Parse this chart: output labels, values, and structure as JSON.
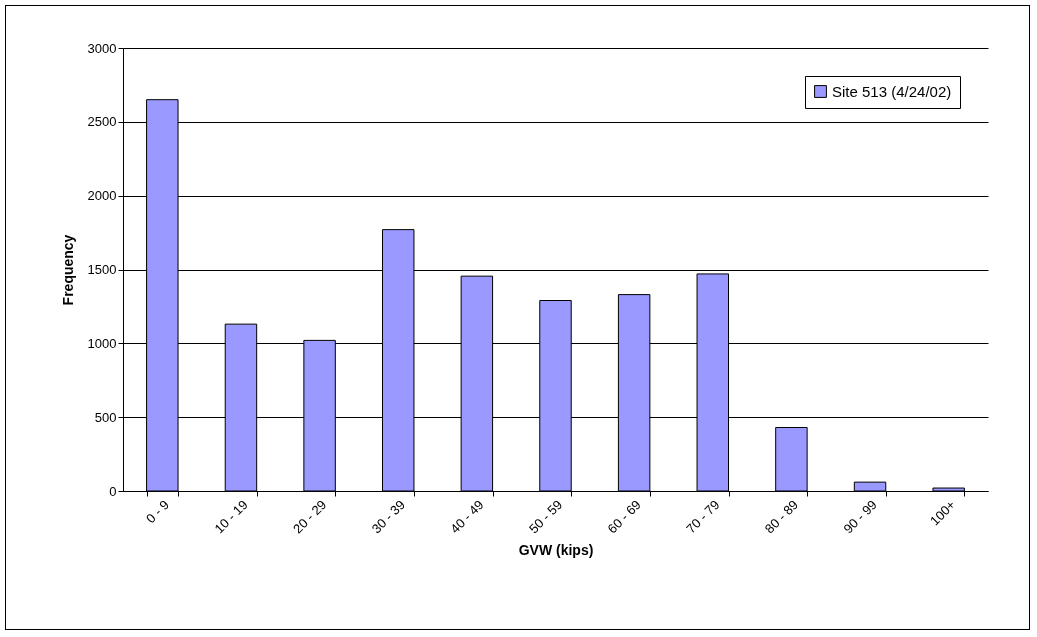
{
  "chart_data": {
    "type": "bar",
    "xlabel": "GVW (kips)",
    "ylabel": "Frequency",
    "categories": [
      "0 - 9",
      "10 - 19",
      "20 - 29",
      "30 - 39",
      "40 - 49",
      "50 - 59",
      "60 - 69",
      "70 - 79",
      "80 - 89",
      "90 - 99",
      "100+"
    ],
    "series": [
      {
        "name": "Site 513 (4/24/02)",
        "color": "#9999ff",
        "values": [
          2650,
          1130,
          1020,
          1770,
          1455,
          1290,
          1330,
          1470,
          430,
          60,
          20
        ]
      }
    ],
    "ylim": [
      0,
      3000
    ],
    "yticks": [
      0,
      500,
      1000,
      1500,
      2000,
      2500,
      3000
    ],
    "grid": "y",
    "legend": "top right"
  }
}
